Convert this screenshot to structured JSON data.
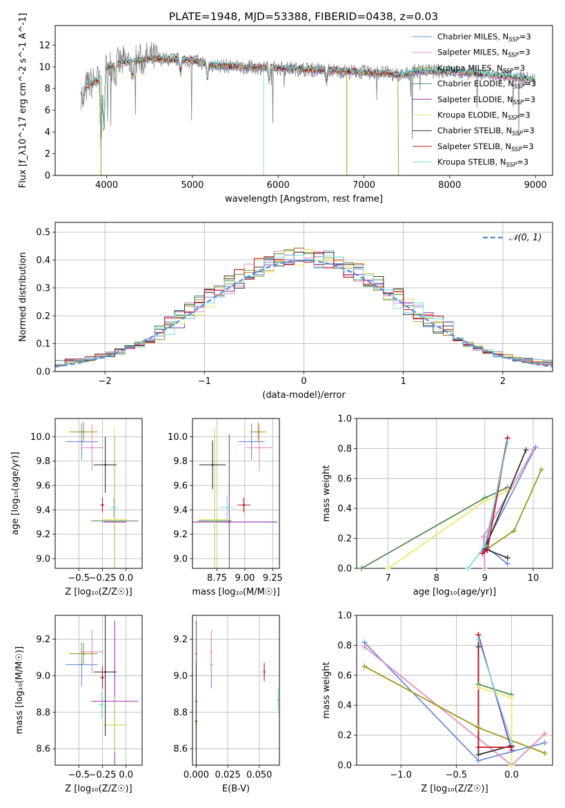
{
  "title": "PLATE=1948, MJD=53388, FIBERID=0438, z=0.03",
  "colors": [
    "#6a8fd8",
    "#e58ac0",
    "#9a9a1a",
    "#4f8a4f",
    "#9b2fae",
    "#e8e86a",
    "#333333",
    "#c0141c",
    "#79dede"
  ],
  "dashed_color": "#5b8fd8",
  "chart_data": [
    {
      "id": "spectrum",
      "type": "line",
      "xlabel": "wavelength [Angstrom, rest frame]",
      "ylabel": "Flux [f_λ10^-17 erg cm^-2 s^-1 A^-1]",
      "xlim": [
        3400,
        9200
      ],
      "ylim": [
        0,
        13.8
      ],
      "xticks": [
        4000,
        5000,
        6000,
        7000,
        8000,
        9000
      ],
      "yticks": [
        0,
        2,
        4,
        6,
        8,
        10,
        12
      ],
      "xticklabels": [
        "4000",
        "5000",
        "6000",
        "7000",
        "8000",
        "9000"
      ],
      "yticklabels": [
        "0",
        "2",
        "4",
        "6",
        "8",
        "10",
        "12"
      ],
      "grid": false,
      "legend_position": "top-right",
      "legend": [
        {
          "label": "Chabrier MILES, N",
          "sub": "SSP",
          "suffix": "=3"
        },
        {
          "label": "Salpeter MILES, N",
          "sub": "SSP",
          "suffix": "=3"
        },
        {
          "label": "Kroupa MILES, N",
          "sub": "SSP",
          "suffix": "=3"
        },
        {
          "label": "Chabrier ELODIE, N",
          "sub": "SSP",
          "suffix": "=3"
        },
        {
          "label": "Salpeter ELODIE, N",
          "sub": "SSP",
          "suffix": "=3"
        },
        {
          "label": "Kroupa ELODIE, N",
          "sub": "SSP",
          "suffix": "=3"
        },
        {
          "label": "Chabrier STELIB, N",
          "sub": "SSP",
          "suffix": "=3"
        },
        {
          "label": "Salpeter STELIB, N",
          "sub": "SSP",
          "suffix": "=3"
        },
        {
          "label": "Kroupa STELIB, N",
          "sub": "SSP",
          "suffix": "=3"
        }
      ],
      "continuum": [
        [
          3700,
          7.6
        ],
        [
          3800,
          8.4
        ],
        [
          3900,
          8.8
        ],
        [
          4000,
          10.0
        ],
        [
          4100,
          10.2
        ],
        [
          4200,
          10.4
        ],
        [
          4300,
          10.5
        ],
        [
          4400,
          10.6
        ],
        [
          4500,
          10.8
        ],
        [
          4700,
          10.7
        ],
        [
          5000,
          10.6
        ],
        [
          5200,
          10.2
        ],
        [
          5500,
          10.0
        ],
        [
          6000,
          9.9
        ],
        [
          6500,
          9.7
        ],
        [
          7000,
          9.5
        ],
        [
          7300,
          9.4
        ],
        [
          7430,
          9.2
        ],
        [
          7600,
          9.6
        ],
        [
          8000,
          9.6
        ],
        [
          8400,
          9.3
        ],
        [
          8800,
          9.0
        ],
        [
          9000,
          8.8
        ]
      ],
      "absorption_lines": [
        [
          3727,
          -1.2
        ],
        [
          3934,
          -6.5
        ],
        [
          3968,
          -5.8
        ],
        [
          4102,
          -1.0
        ],
        [
          4304,
          -1.5
        ],
        [
          4861,
          -1.0
        ],
        [
          5175,
          -1.3
        ],
        [
          5893,
          -1.2
        ],
        [
          6563,
          -1.0
        ]
      ]
    },
    {
      "id": "residuals",
      "type": "histogram",
      "xlabel": "(data-model)/error",
      "ylabel": "Normed distribution",
      "xlim": [
        -2.5,
        2.5
      ],
      "ylim": [
        0,
        0.535
      ],
      "xticks": [
        -2,
        -1,
        0,
        1,
        2
      ],
      "xticklabels": [
        "−2",
        "−1",
        "0",
        "1",
        "2"
      ],
      "yticks": [
        0,
        0.1,
        0.2,
        0.3,
        0.4,
        0.5
      ],
      "yticklabels": [
        "0.0",
        "0.1",
        "0.2",
        "0.3",
        "0.4",
        "0.5"
      ],
      "grid": true,
      "bin_width": 0.1,
      "legend": {
        "label": "𝒩(0, 1)",
        "position": "top-right"
      },
      "normal_curve": {
        "mean": 0,
        "sigma": 1
      }
    },
    {
      "id": "age_vs_Z",
      "type": "scatter",
      "xlabel": "Z [log₁₀(Z/Z☉)]",
      "ylabel": "age  [log₁₀(age/yr)]",
      "xlim": [
        -0.75,
        0.17
      ],
      "ylim": [
        8.92,
        10.15
      ],
      "xticks": [
        -0.5,
        -0.25,
        0
      ],
      "xticklabels": [
        "−0.5",
        "−0.25",
        "0.0"
      ],
      "yticks": [
        9.0,
        9.2,
        9.4,
        9.6,
        9.8,
        10.0
      ],
      "yticklabels": [
        "9.0",
        "9.2",
        "9.4",
        "9.6",
        "9.8",
        "10.0"
      ],
      "grid": true,
      "points": [
        {
          "x": -0.47,
          "y": 9.96,
          "ex": 0.17,
          "ey": 0.15
        },
        {
          "x": -0.36,
          "y": 9.91,
          "ex": 0.12,
          "ey": 0.19
        },
        {
          "x": -0.45,
          "y": 10.04,
          "ex": 0.15,
          "ey": 0.08
        },
        {
          "x": -0.12,
          "y": 9.31,
          "ex": 0.25,
          "ey": 0.68
        },
        {
          "x": -0.12,
          "y": 9.3,
          "ex": 0.12,
          "ey": 0.72
        },
        {
          "x": -0.12,
          "y": 9.32,
          "ex": 0.12,
          "ey": 0.76
        },
        {
          "x": -0.22,
          "y": 9.77,
          "ex": 0.12,
          "ey": 0.23
        },
        {
          "x": -0.25,
          "y": 9.44,
          "ex": 0.02,
          "ey": 0.06
        },
        {
          "x": -0.13,
          "y": 9.42,
          "ex": 0.04,
          "ey": 0.08
        }
      ]
    },
    {
      "id": "age_vs_mass",
      "type": "scatter",
      "xlabel": "mass [log₁₀(M/M☉)]",
      "ylabel": "",
      "xlim": [
        8.53,
        9.31
      ],
      "ylim": [
        8.92,
        10.15
      ],
      "xticks": [
        8.75,
        9.0,
        9.25
      ],
      "xticklabels": [
        "8.75",
        "9.00",
        "9.25"
      ],
      "yticks": [
        9.0,
        9.2,
        9.4,
        9.6,
        9.8,
        10.0
      ],
      "yticklabels": [
        "9.0",
        "9.2",
        "9.4",
        "9.6",
        "9.8",
        "10.0"
      ],
      "grid": true,
      "points": [
        {
          "x": 9.06,
          "y": 9.96,
          "ex": 0.12,
          "ey": 0.15
        },
        {
          "x": 9.13,
          "y": 9.91,
          "ex": 0.12,
          "ey": 0.19
        },
        {
          "x": 9.12,
          "y": 10.04,
          "ex": 0.07,
          "ey": 0.08
        },
        {
          "x": 8.73,
          "y": 9.31,
          "ex": 0.15,
          "ey": 0.75
        },
        {
          "x": 8.86,
          "y": 9.3,
          "ex": 0.43,
          "ey": 0.72
        },
        {
          "x": 8.73,
          "y": 9.32,
          "ex": 0.15,
          "ey": 0.76
        },
        {
          "x": 8.71,
          "y": 9.77,
          "ex": 0.12,
          "ey": 0.2
        },
        {
          "x": 8.99,
          "y": 9.44,
          "ex": 0.06,
          "ey": 0.06
        },
        {
          "x": 8.84,
          "y": 9.42,
          "ex": 0.06,
          "ey": 0.1
        }
      ]
    },
    {
      "id": "mass_weight_vs_age",
      "type": "line",
      "xlabel": "age  [log₁₀(age/yr)]",
      "ylabel": "mass weight",
      "xlim": [
        6.35,
        10.4
      ],
      "ylim": [
        0,
        1.0
      ],
      "xticks": [
        7,
        8,
        9,
        10
      ],
      "xticklabels": [
        "7",
        "8",
        "9",
        "10"
      ],
      "yticks": [
        0,
        0.2,
        0.4,
        0.6,
        0.8,
        1.0
      ],
      "yticklabels": [
        "0.0",
        "0.2",
        "0.4",
        "0.6",
        "0.8",
        "1.0"
      ],
      "grid": true,
      "series": [
        {
          "x": [
            9.47,
            9.0,
            10.05
          ],
          "y": [
            0.03,
            0.15,
            0.81
          ]
        },
        {
          "x": [
            9.0,
            8.97,
            10.0
          ],
          "y": [
            0.0,
            0.21,
            0.79
          ]
        },
        {
          "x": [
            9.0,
            9.6,
            10.17
          ],
          "y": [
            0.12,
            0.25,
            0.66
          ]
        },
        {
          "x": [
            6.45,
            9.0,
            9.47
          ],
          "y": [
            0.0,
            0.47,
            0.54
          ]
        },
        {
          "x": [
            8.95,
            9.0,
            9.47
          ],
          "y": [
            0.1,
            0.12,
            0.87
          ]
        },
        {
          "x": [
            7.0,
            9.0,
            9.47
          ],
          "y": [
            0.0,
            0.45,
            0.52
          ]
        },
        {
          "x": [
            9.47,
            9.0,
            9.85
          ],
          "y": [
            0.07,
            0.13,
            0.79
          ]
        },
        {
          "x": [
            8.95,
            9.05,
            9.47
          ],
          "y": [
            0.1,
            0.12,
            0.87
          ]
        },
        {
          "x": [
            8.65,
            9.0,
            9.47
          ],
          "y": [
            0.0,
            0.15,
            0.84
          ]
        }
      ]
    },
    {
      "id": "mass_vs_Z",
      "type": "scatter",
      "xlabel": "Z [log₁₀(Z/Z☉)]",
      "ylabel": "mass [log₁₀(M/M☉)]",
      "xlim": [
        -0.75,
        0.17
      ],
      "ylim": [
        8.51,
        9.33
      ],
      "xticks": [
        -0.5,
        -0.25,
        0
      ],
      "xticklabels": [
        "−0.5",
        "−0.25",
        "0.0"
      ],
      "yticks": [
        8.6,
        8.8,
        9.0,
        9.2
      ],
      "yticklabels": [
        "8.6",
        "8.8",
        "9.0",
        "9.2"
      ],
      "grid": true,
      "points": [
        {
          "x": -0.47,
          "y": 9.06,
          "ex": 0.17,
          "ey": 0.12
        },
        {
          "x": -0.36,
          "y": 9.13,
          "ex": 0.12,
          "ey": 0.12
        },
        {
          "x": -0.45,
          "y": 9.12,
          "ex": 0.15,
          "ey": 0.06
        },
        {
          "x": -0.12,
          "y": 8.73,
          "ex": 0.12,
          "ey": 0.15
        },
        {
          "x": -0.12,
          "y": 8.86,
          "ex": 0.25,
          "ey": 0.44
        },
        {
          "x": -0.12,
          "y": 8.73,
          "ex": 0.12,
          "ey": 0.15
        },
        {
          "x": -0.22,
          "y": 9.02,
          "ex": 0.12,
          "ey": 0.35
        },
        {
          "x": -0.25,
          "y": 8.99,
          "ex": 0.02,
          "ey": 0.06
        },
        {
          "x": -0.26,
          "y": 8.84,
          "ex": 0.03,
          "ey": 0.07
        }
      ]
    },
    {
      "id": "mass_vs_EBV",
      "type": "scatter",
      "xlabel": "E(B-V)",
      "ylabel": "",
      "xlim": [
        -0.003,
        0.066
      ],
      "ylim": [
        8.51,
        9.33
      ],
      "xticks": [
        0,
        0.025,
        0.05
      ],
      "xticklabels": [
        "0.000",
        "0.025",
        "0.050"
      ],
      "yticks": [
        8.6,
        8.8,
        9.0,
        9.2
      ],
      "yticklabels": [
        "8.6",
        "8.8",
        "9.0",
        "9.2"
      ],
      "grid": true,
      "points": [
        {
          "x": 0.012,
          "y": 9.06,
          "ex": 0,
          "ey": 0.13
        },
        {
          "x": 0.012,
          "y": 9.13,
          "ex": 0,
          "ey": 0.12
        },
        {
          "x": 0.0,
          "y": 9.12,
          "ex": 0,
          "ey": 0.08
        },
        {
          "x": 0.0,
          "y": 8.73,
          "ex": 0,
          "ey": 0.15
        },
        {
          "x": 0.0,
          "y": 8.86,
          "ex": 0,
          "ey": 0.44
        },
        {
          "x": 0.0,
          "y": 8.73,
          "ex": 0,
          "ey": 0.15
        },
        {
          "x": 0.0,
          "y": 8.75,
          "ex": 0,
          "ey": 0.32
        },
        {
          "x": 0.054,
          "y": 9.02,
          "ex": 0,
          "ey": 0.05
        },
        {
          "x": 0.065,
          "y": 8.87,
          "ex": 0,
          "ey": 0.06
        }
      ]
    },
    {
      "id": "mass_weight_vs_Z",
      "type": "line",
      "xlabel": "Z [log₁₀(Z/Z☉)]",
      "ylabel": "mass weight",
      "xlim": [
        -1.4,
        0.37
      ],
      "ylim": [
        0,
        1.0
      ],
      "xticks": [
        -1.0,
        -0.5,
        0.0
      ],
      "xticklabels": [
        "−1.0",
        "−0.5",
        "0.0"
      ],
      "yticks": [
        0,
        0.2,
        0.4,
        0.6,
        0.8,
        1.0
      ],
      "yticklabels": [
        "0.0",
        "0.2",
        "0.4",
        "0.6",
        "0.8",
        "1.0"
      ],
      "grid": true,
      "series": [
        {
          "x": [
            -1.33,
            -0.3,
            0.3
          ],
          "y": [
            0.82,
            0.03,
            0.15
          ]
        },
        {
          "x": [
            -1.33,
            0.0,
            0.3
          ],
          "y": [
            0.79,
            0.0,
            0.21
          ]
        },
        {
          "x": [
            -1.33,
            -0.3,
            0.3
          ],
          "y": [
            0.66,
            0.25,
            0.08
          ]
        },
        {
          "x": [
            -0.3,
            0.0
          ],
          "y": [
            0.54,
            0.47
          ]
        },
        {
          "x": [
            -0.3,
            0.0
          ],
          "y": [
            0.87,
            0.1
          ]
        },
        {
          "x": [
            -0.3,
            0.0,
            0.0
          ],
          "y": [
            0.52,
            0.45,
            0.0
          ]
        },
        {
          "x": [
            -0.3,
            -0.3,
            0.0
          ],
          "y": [
            0.79,
            0.07,
            0.13
          ]
        },
        {
          "x": [
            -0.3,
            -0.3,
            0.0
          ],
          "y": [
            0.87,
            0.12,
            0.12
          ]
        },
        {
          "x": [
            -0.3,
            0.0
          ],
          "y": [
            0.84,
            0.15
          ]
        }
      ]
    }
  ]
}
